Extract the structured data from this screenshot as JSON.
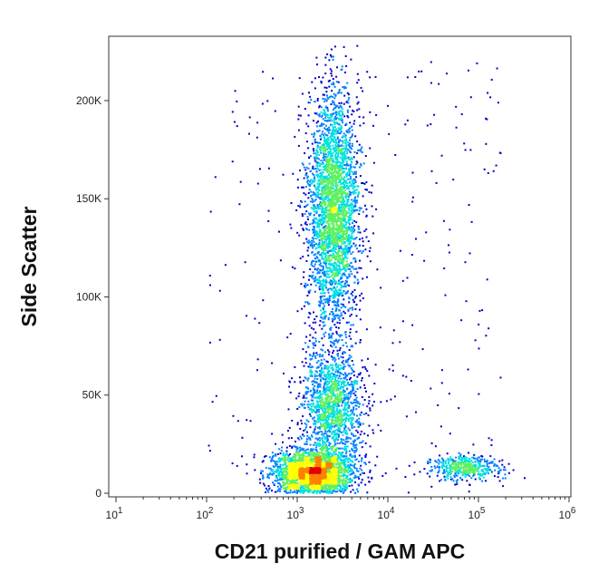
{
  "chart_data": {
    "type": "scatter",
    "subtype": "flow-cytometry density dot plot",
    "xlabel": "CD21 purified / GAM APC",
    "ylabel": "Side Scatter",
    "x_scale": "log",
    "xlim": [
      10,
      1000000
    ],
    "ylim": [
      0,
      230000
    ],
    "x_ticks": [
      {
        "value": 10,
        "base": "10",
        "exp": "1"
      },
      {
        "value": 100,
        "base": "10",
        "exp": "2"
      },
      {
        "value": 1000,
        "base": "10",
        "exp": "3"
      },
      {
        "value": 10000,
        "base": "10",
        "exp": "4"
      },
      {
        "value": 100000,
        "base": "10",
        "exp": "5"
      },
      {
        "value": 1000000,
        "base": "10",
        "exp": "6"
      }
    ],
    "y_ticks": [
      {
        "value": 0,
        "label": "0"
      },
      {
        "value": 50000,
        "label": "50K"
      },
      {
        "value": 100000,
        "label": "100K"
      },
      {
        "value": 150000,
        "label": "150K"
      },
      {
        "value": 200000,
        "label": "200K"
      }
    ],
    "grid": false,
    "legend": "none",
    "density_colors": [
      "#0000c8",
      "#0080ff",
      "#00e0e0",
      "#60f060",
      "#ffff00",
      "#ff8000",
      "#e00000"
    ],
    "populations": [
      {
        "id": "cd21-negative-high-ssc",
        "x_center": 2500,
        "x_sd_log10": 0.14,
        "y_center": 145000,
        "y_sd": 30000,
        "points": 3200
      },
      {
        "id": "cd21-negative-mid-ssc",
        "x_center": 2500,
        "x_sd_log10": 0.17,
        "y_center": 45000,
        "y_sd": 14000,
        "points": 1400
      },
      {
        "id": "cd21-negative-low-ssc",
        "x_center": 1500,
        "x_sd_log10": 0.22,
        "y_center": 10000,
        "y_sd": 6000,
        "points": 2600
      },
      {
        "id": "cd21-positive",
        "x_center": 70000,
        "x_sd_log10": 0.2,
        "y_center": 13000,
        "y_sd": 3000,
        "points": 450
      }
    ]
  }
}
